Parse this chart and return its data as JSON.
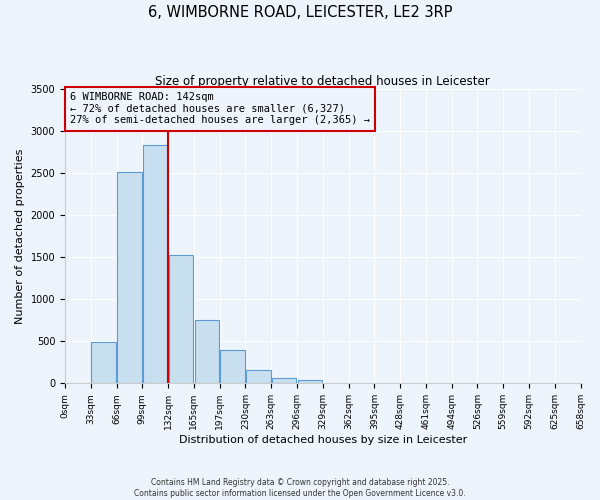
{
  "title": "6, WIMBORNE ROAD, LEICESTER, LE2 3RP",
  "subtitle": "Size of property relative to detached houses in Leicester",
  "xlabel": "Distribution of detached houses by size in Leicester",
  "ylabel": "Number of detached properties",
  "bar_values": [
    0,
    490,
    2520,
    2830,
    1530,
    750,
    400,
    155,
    65,
    35,
    0,
    0,
    0,
    0,
    0,
    0,
    0,
    0,
    0,
    0
  ],
  "tick_labels": [
    "0sqm",
    "33sqm",
    "66sqm",
    "99sqm",
    "132sqm",
    "165sqm",
    "197sqm",
    "230sqm",
    "263sqm",
    "296sqm",
    "329sqm",
    "362sqm",
    "395sqm",
    "428sqm",
    "461sqm",
    "494sqm",
    "526sqm",
    "559sqm",
    "592sqm",
    "625sqm",
    "658sqm"
  ],
  "bar_color": "#c8dff0",
  "bar_edge_color": "#5b9bd5",
  "ylim": [
    0,
    3500
  ],
  "yticks": [
    0,
    500,
    1000,
    1500,
    2000,
    2500,
    3000,
    3500
  ],
  "vline_color": "#cc0000",
  "annotation_title": "6 WIMBORNE ROAD: 142sqm",
  "annotation_line1": "← 72% of detached houses are smaller (6,327)",
  "annotation_line2": "27% of semi-detached houses are larger (2,365) →",
  "annotation_box_color": "#cc0000",
  "footnote1": "Contains HM Land Registry data © Crown copyright and database right 2025.",
  "footnote2": "Contains public sector information licensed under the Open Government Licence v3.0.",
  "background_color": "#eef4fb",
  "grid_color": "#ffffff",
  "title_fontsize": 10.5,
  "subtitle_fontsize": 8.5,
  "axis_label_fontsize": 8,
  "tick_fontsize": 6.5,
  "annotation_fontsize": 7.5,
  "footnote_fontsize": 5.5
}
